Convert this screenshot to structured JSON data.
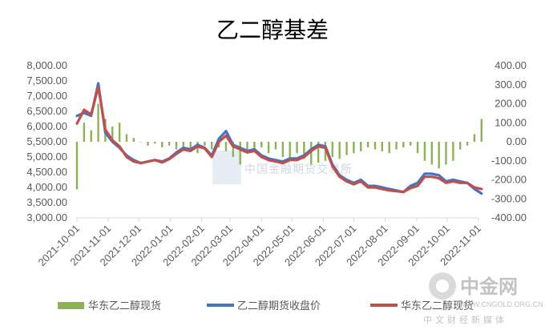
{
  "chart_data": {
    "type": "line",
    "title": "乙二醇基差",
    "x": [
      "2021-10-01",
      "2021-10-08",
      "2021-10-15",
      "2021-10-22",
      "2021-10-29",
      "2021-11-05",
      "2021-11-12",
      "2021-11-19",
      "2021-11-26",
      "2021-12-03",
      "2021-12-10",
      "2021-12-17",
      "2021-12-24",
      "2021-12-31",
      "2022-01-07",
      "2022-01-14",
      "2022-01-21",
      "2022-01-28",
      "2022-02-04",
      "2022-02-11",
      "2022-02-18",
      "2022-02-25",
      "2022-03-04",
      "2022-03-11",
      "2022-03-18",
      "2022-03-25",
      "2022-04-01",
      "2022-04-08",
      "2022-04-15",
      "2022-04-22",
      "2022-04-29",
      "2022-05-06",
      "2022-05-13",
      "2022-05-20",
      "2022-05-27",
      "2022-06-03",
      "2022-06-10",
      "2022-06-17",
      "2022-06-24",
      "2022-07-01",
      "2022-07-08",
      "2022-07-15",
      "2022-07-22",
      "2022-07-29",
      "2022-08-05",
      "2022-08-12",
      "2022-08-19",
      "2022-08-26",
      "2022-09-02",
      "2022-09-09",
      "2022-09-16",
      "2022-09-23",
      "2022-09-30",
      "2022-10-07",
      "2022-10-14",
      "2022-10-21",
      "2022-10-28",
      "2022-11-04"
    ],
    "x_ticks": [
      "2021-10-01",
      "2021-11-01",
      "2021-12-01",
      "2022-01-01",
      "2022-02-01",
      "2022-03-01",
      "2022-04-01",
      "2022-05-01",
      "2022-06-01",
      "2022-07-01",
      "2022-08-01",
      "2022-09-01",
      "2022-10-01",
      "2022-11-01"
    ],
    "y_left": {
      "range": [
        3000,
        8000
      ],
      "ticks": [
        "3,000.00",
        "3,500.00",
        "4,000.00",
        "4,500.00",
        "5,000.00",
        "5,500.00",
        "6,000.00",
        "6,500.00",
        "7,000.00",
        "7,500.00",
        "8,000.00"
      ]
    },
    "y_right": {
      "range": [
        -400,
        400
      ],
      "ticks": [
        "-400.00",
        "-300.00",
        "-200.00",
        "-100.00",
        "0.00",
        "100.00",
        "200.00",
        "300.00",
        "400.00"
      ]
    },
    "series": [
      {
        "name": "华东乙二醇现货",
        "kind": "bar",
        "axis": "right",
        "color": "#8db255",
        "values": [
          -250,
          100,
          60,
          200,
          120,
          80,
          100,
          40,
          20,
          0,
          -20,
          -10,
          -30,
          -20,
          -40,
          -30,
          -50,
          -60,
          -20,
          -40,
          -30,
          -50,
          -80,
          -120,
          -60,
          -40,
          -30,
          -60,
          -40,
          -80,
          -100,
          -60,
          -90,
          -120,
          -110,
          -100,
          -80,
          -90,
          -70,
          -60,
          -50,
          -30,
          -40,
          -50,
          -60,
          -40,
          -30,
          -20,
          -60,
          -100,
          -120,
          -140,
          -120,
          -100,
          -40,
          -20,
          40,
          120
        ]
      },
      {
        "name": "乙二醇期货收盘价",
        "kind": "line",
        "axis": "left",
        "color": "#4472c4",
        "values": [
          6350,
          6450,
          6350,
          7420,
          5800,
          5500,
          5300,
          5050,
          4900,
          4800,
          4850,
          4900,
          4850,
          4950,
          5150,
          5300,
          5250,
          5400,
          5300,
          5050,
          5600,
          5850,
          5400,
          5300,
          5200,
          5250,
          5050,
          4950,
          4900,
          4850,
          4950,
          4950,
          5050,
          5250,
          5400,
          5350,
          4750,
          4400,
          4250,
          4150,
          4250,
          4050,
          4050,
          4000,
          3950,
          3900,
          3850,
          4050,
          4150,
          4450,
          4450,
          4400,
          4200,
          4250,
          4200,
          4150,
          3950,
          3800
        ]
      },
      {
        "name": "华东乙二醇现货",
        "kind": "line",
        "axis": "left",
        "color": "#c0504d",
        "values": [
          6100,
          6550,
          6400,
          7300,
          5900,
          5550,
          5350,
          5000,
          4850,
          4800,
          4850,
          4900,
          4820,
          4930,
          5100,
          5250,
          5200,
          5350,
          5280,
          5000,
          5500,
          5700,
          5350,
          5250,
          5150,
          5200,
          5000,
          4900,
          4850,
          4800,
          4900,
          4900,
          5000,
          5200,
          5350,
          5300,
          4700,
          4350,
          4200,
          4100,
          4200,
          4000,
          4000,
          3950,
          3900,
          3880,
          3850,
          3980,
          4050,
          4350,
          4350,
          4300,
          4150,
          4200,
          4150,
          4150,
          4000,
          3950
        ]
      }
    ],
    "legend": {
      "placement": "bottom"
    }
  },
  "watermark": {
    "brand": "中金网",
    "url": "WWW.CNGOLD.ORG.CN",
    "sub": "中文财经新媒体",
    "overlay": "中国金融期货交易所"
  }
}
